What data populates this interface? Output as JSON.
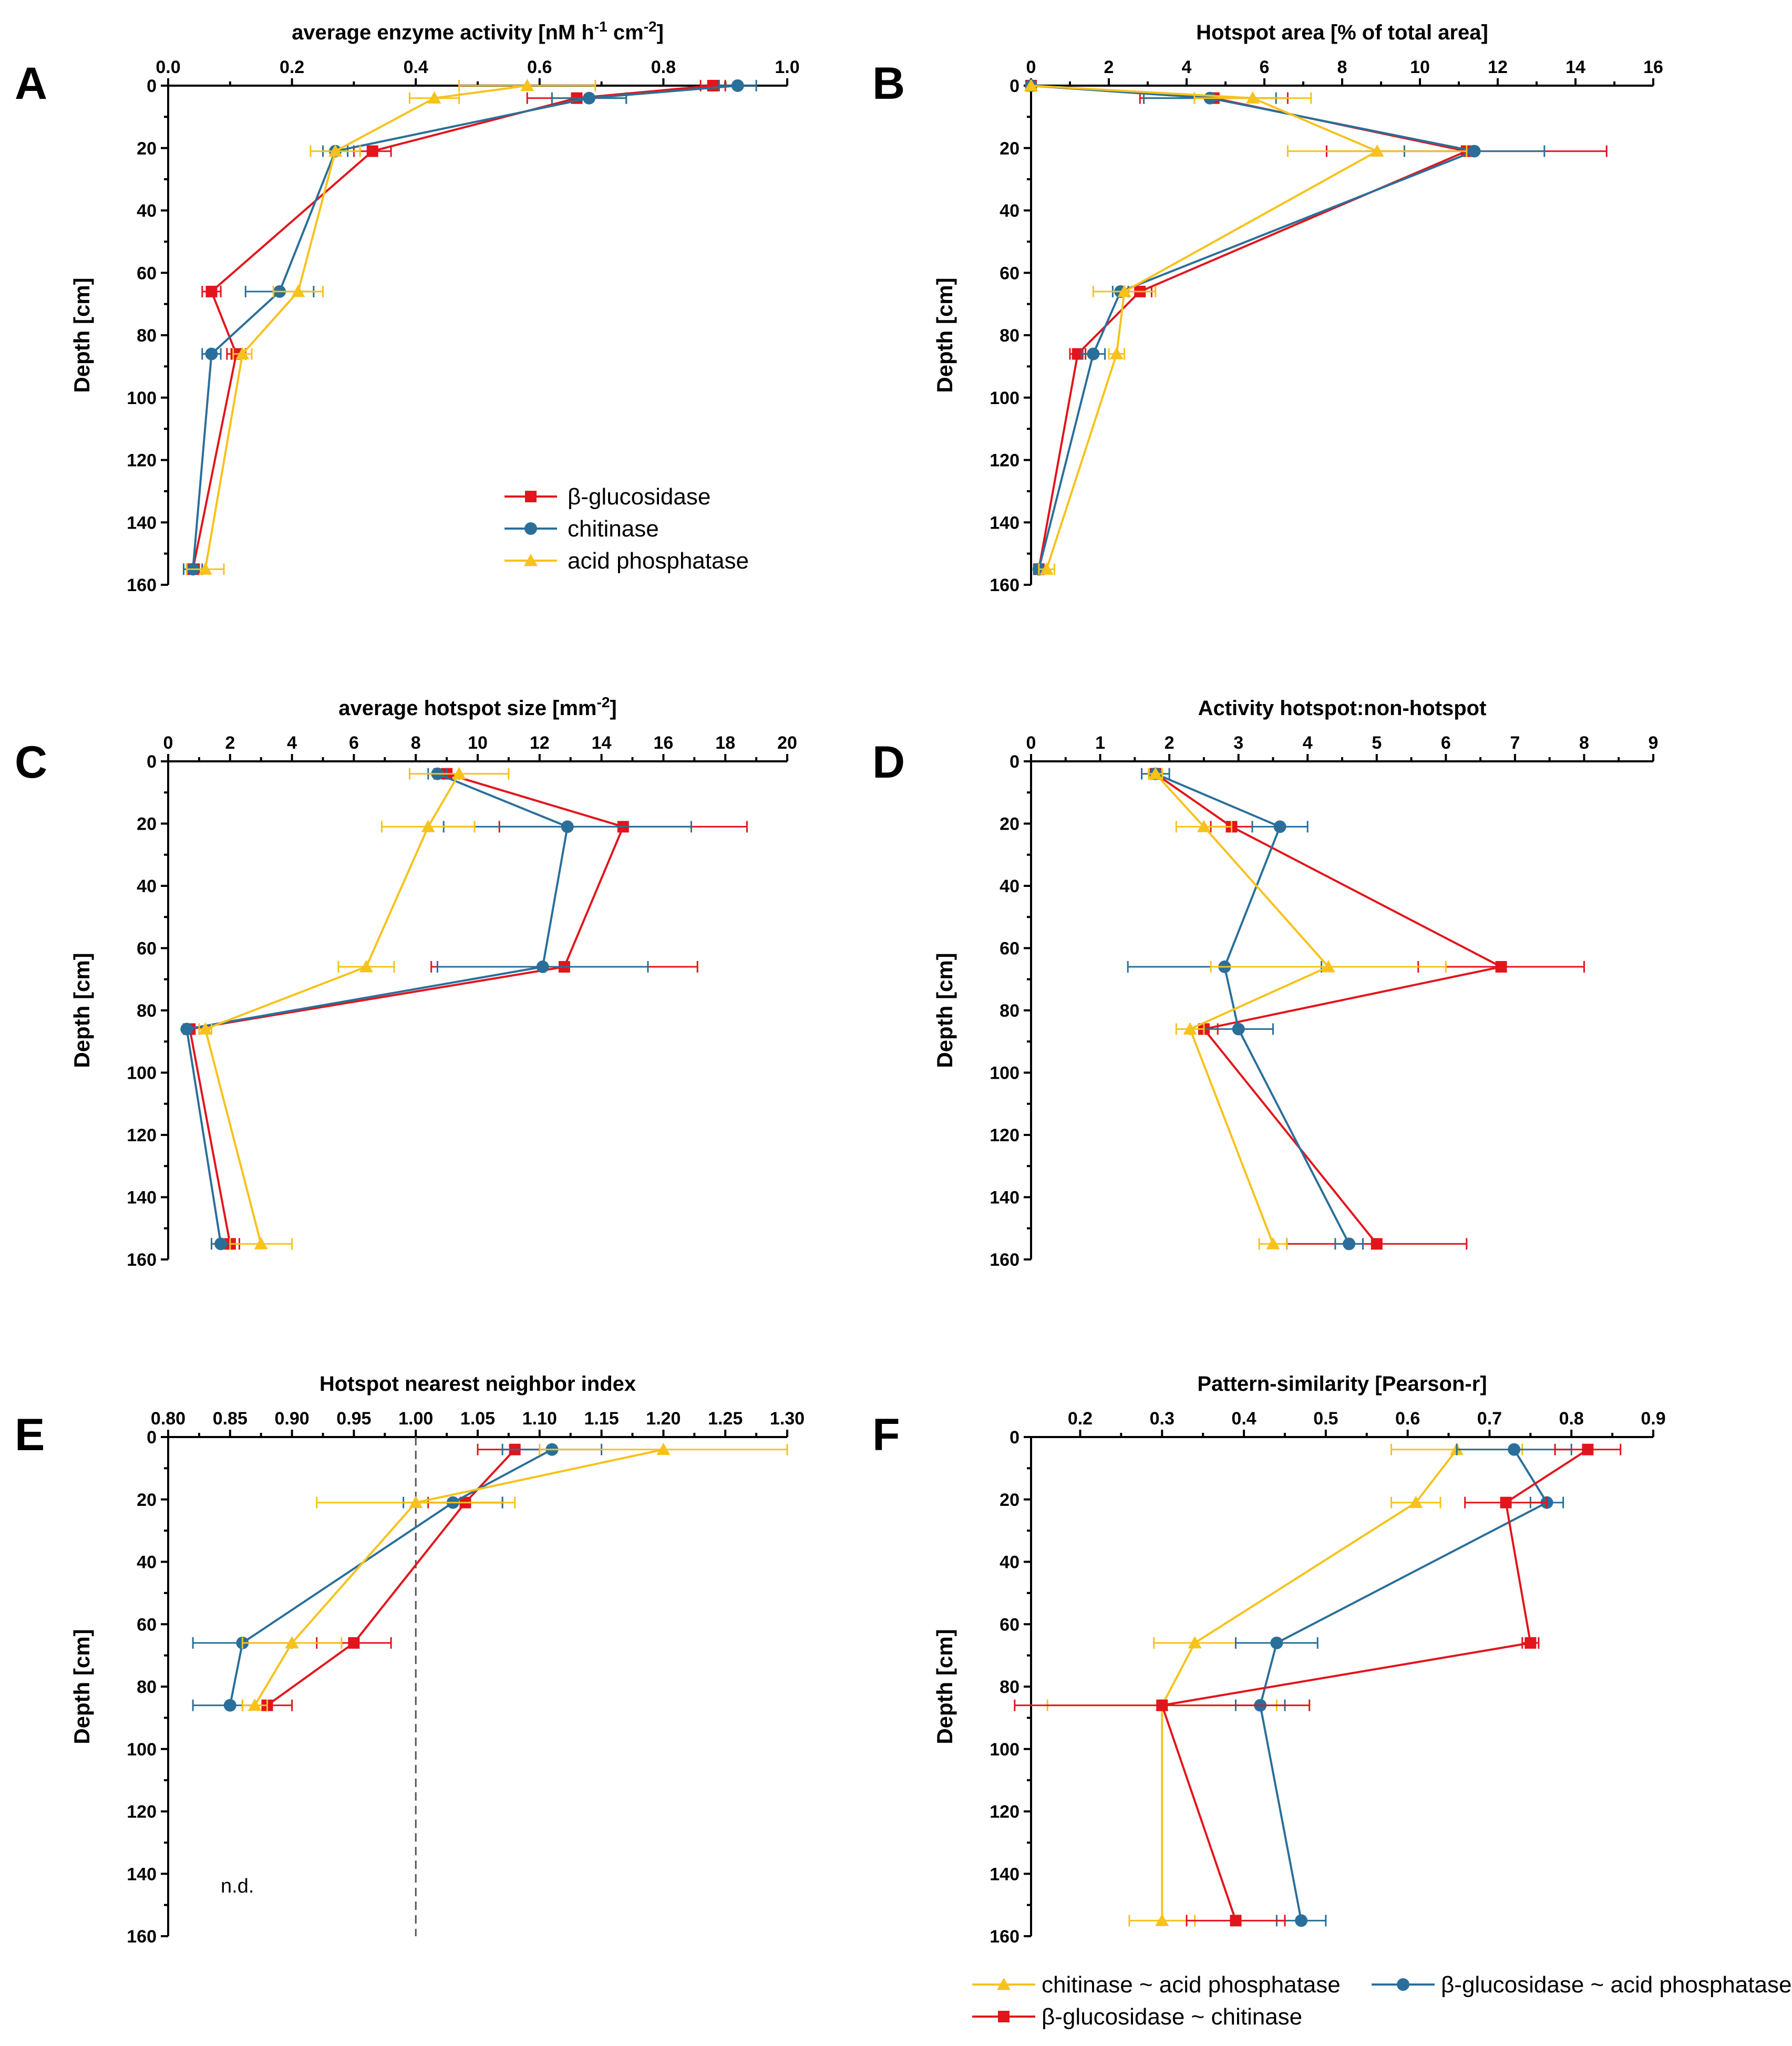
{
  "figure": {
    "ylabel": "Depth [cm]",
    "depth_ticks": [
      0,
      20,
      40,
      60,
      80,
      100,
      120,
      140,
      160
    ],
    "colors": {
      "red": "#e3141c",
      "blue": "#2a6f9a",
      "yellow": "#f7c21a"
    }
  },
  "chart_data": [
    {
      "id": "A",
      "letter": "A",
      "type": "line",
      "title": "average enzyme activity [nM h^-1 cm^-2]",
      "title_parts": [
        "average enzyme activity [nM h",
        "-1",
        " cm",
        "-2",
        "]"
      ],
      "xlim": [
        0,
        1.0
      ],
      "xticks": [
        0.0,
        0.2,
        0.4,
        0.6,
        0.8,
        1.0
      ],
      "xtick_labels": [
        "0.0",
        "0.2",
        "0.4",
        "0.6",
        "0.8",
        "1.0"
      ],
      "ylim": [
        0,
        160
      ],
      "legend": [
        "β-glucosidase",
        "chitinase",
        "acid phosphatase"
      ],
      "series": [
        {
          "name": "β-glucosidase",
          "color": "#e3141c",
          "marker": "square",
          "points": [
            [
              0.88,
              0
            ],
            [
              0.66,
              4
            ],
            [
              0.33,
              21
            ],
            [
              0.07,
              66
            ],
            [
              0.11,
              86
            ],
            [
              0.04,
              155
            ]
          ],
          "errors": [
            0.02,
            0.08,
            0.03,
            0.015,
            0.015,
            0.01
          ]
        },
        {
          "name": "chitinase",
          "color": "#2a6f9a",
          "marker": "circle",
          "points": [
            [
              0.92,
              0
            ],
            [
              0.68,
              4
            ],
            [
              0.27,
              21
            ],
            [
              0.18,
              66
            ],
            [
              0.07,
              86
            ],
            [
              0.04,
              155
            ]
          ],
          "errors": [
            0.03,
            0.06,
            0.02,
            0.055,
            0.015,
            0.015
          ]
        },
        {
          "name": "acid phosphatase",
          "color": "#f7c21a",
          "marker": "triangle",
          "points": [
            [
              0.58,
              0
            ],
            [
              0.43,
              4
            ],
            [
              0.27,
              21
            ],
            [
              0.21,
              66
            ],
            [
              0.12,
              86
            ],
            [
              0.06,
              155
            ]
          ],
          "errors": [
            0.11,
            0.04,
            0.04,
            0.04,
            0.015,
            0.03
          ]
        }
      ]
    },
    {
      "id": "B",
      "letter": "B",
      "type": "line",
      "title": "Hotspot area [% of total area]",
      "title_parts": [
        "Hotspot area [% of total area]"
      ],
      "xlim": [
        0,
        16
      ],
      "xticks": [
        0,
        2,
        4,
        6,
        8,
        10,
        12,
        14,
        16
      ],
      "xtick_labels": [
        "0",
        "2",
        "4",
        "6",
        "8",
        "10",
        "12",
        "14",
        "16"
      ],
      "ylim": [
        0,
        160
      ],
      "series": [
        {
          "name": "β-glucosidase",
          "color": "#e3141c",
          "marker": "square",
          "points": [
            [
              0,
              0
            ],
            [
              4.7,
              4
            ],
            [
              11.2,
              21
            ],
            [
              2.8,
              66
            ],
            [
              1.2,
              86
            ],
            [
              0.2,
              155
            ]
          ],
          "errors": [
            0,
            1.9,
            3.6,
            0.3,
            0.2,
            0.1
          ]
        },
        {
          "name": "chitinase",
          "color": "#2a6f9a",
          "marker": "circle",
          "points": [
            [
              0,
              0
            ],
            [
              4.6,
              4
            ],
            [
              11.4,
              21
            ],
            [
              2.3,
              66
            ],
            [
              1.6,
              86
            ],
            [
              0.2,
              155
            ]
          ],
          "errors": [
            0,
            1.7,
            1.8,
            0.2,
            0.3,
            0.1
          ]
        },
        {
          "name": "acid phosphatase",
          "color": "#f7c21a",
          "marker": "triangle",
          "points": [
            [
              0,
              0
            ],
            [
              5.7,
              4
            ],
            [
              8.9,
              21
            ],
            [
              2.4,
              66
            ],
            [
              2.2,
              86
            ],
            [
              0.4,
              155
            ]
          ],
          "errors": [
            0,
            1.5,
            2.3,
            0.8,
            0.2,
            0.2
          ]
        }
      ]
    },
    {
      "id": "C",
      "letter": "C",
      "type": "line",
      "title": "average hotspot size [mm^-2]",
      "title_parts": [
        "average hotspot size [mm",
        "-2",
        "]"
      ],
      "xlim": [
        0,
        20
      ],
      "xticks": [
        0,
        2,
        4,
        6,
        8,
        10,
        12,
        14,
        16,
        18,
        20
      ],
      "xtick_labels": [
        "0",
        "2",
        "4",
        "6",
        "8",
        "10",
        "12",
        "14",
        "16",
        "18",
        "20"
      ],
      "ylim": [
        0,
        160
      ],
      "series": [
        {
          "name": "β-glucosidase",
          "color": "#e3141c",
          "marker": "square",
          "points": [
            [
              9.0,
              4
            ],
            [
              14.7,
              21
            ],
            [
              12.8,
              66
            ],
            [
              0.7,
              86
            ],
            [
              2.0,
              155
            ]
          ],
          "errors": [
            0.4,
            4.0,
            4.3,
            0.1,
            0.3
          ]
        },
        {
          "name": "chitinase",
          "color": "#2a6f9a",
          "marker": "circle",
          "points": [
            [
              8.7,
              4
            ],
            [
              12.9,
              21
            ],
            [
              12.1,
              66
            ],
            [
              0.6,
              86
            ],
            [
              1.7,
              155
            ]
          ],
          "errors": [
            0.3,
            4.0,
            3.4,
            0.1,
            0.3
          ]
        },
        {
          "name": "acid phosphatase",
          "color": "#f7c21a",
          "marker": "triangle",
          "points": [
            [
              9.4,
              4
            ],
            [
              8.4,
              21
            ],
            [
              6.4,
              66
            ],
            [
              1.2,
              86
            ],
            [
              3.0,
              155
            ]
          ],
          "errors": [
            1.6,
            1.5,
            0.9,
            0.2,
            1.0
          ]
        }
      ]
    },
    {
      "id": "D",
      "letter": "D",
      "type": "line",
      "title": "Activity hotspot:non-hotspot",
      "title_parts": [
        "Activity hotspot:non-hotspot"
      ],
      "xlim": [
        0,
        9
      ],
      "xticks": [
        0,
        1,
        2,
        3,
        4,
        5,
        6,
        7,
        8,
        9
      ],
      "xtick_labels": [
        "0",
        "1",
        "2",
        "3",
        "4",
        "5",
        "6",
        "7",
        "8",
        "9"
      ],
      "ylim": [
        0,
        160
      ],
      "series": [
        {
          "name": "β-glucosidase",
          "color": "#e3141c",
          "marker": "square",
          "points": [
            [
              1.8,
              4
            ],
            [
              2.9,
              21
            ],
            [
              6.8,
              66
            ],
            [
              2.5,
              86
            ],
            [
              5.0,
              155
            ]
          ],
          "errors": [
            0.05,
            0.3,
            1.2,
            0.2,
            1.3
          ]
        },
        {
          "name": "chitinase",
          "color": "#2a6f9a",
          "marker": "circle",
          "points": [
            [
              1.8,
              4
            ],
            [
              3.6,
              21
            ],
            [
              2.8,
              66
            ],
            [
              3.0,
              86
            ],
            [
              4.6,
              155
            ]
          ],
          "errors": [
            0.2,
            0.4,
            1.4,
            0.5,
            0.2
          ]
        },
        {
          "name": "acid phosphatase",
          "color": "#f7c21a",
          "marker": "triangle",
          "points": [
            [
              1.8,
              4
            ],
            [
              2.5,
              21
            ],
            [
              4.3,
              66
            ],
            [
              2.3,
              86
            ],
            [
              3.5,
              155
            ]
          ],
          "errors": [
            0.1,
            0.4,
            1.7,
            0.2,
            0.2
          ]
        }
      ]
    },
    {
      "id": "E",
      "letter": "E",
      "type": "line",
      "title": "Hotspot nearest neighbor index",
      "title_parts": [
        "Hotspot nearest neighbor index"
      ],
      "xlim": [
        0.8,
        1.3
      ],
      "xticks": [
        0.8,
        0.85,
        0.9,
        0.95,
        1.0,
        1.05,
        1.1,
        1.15,
        1.2,
        1.25,
        1.3
      ],
      "xtick_labels": [
        "0.80",
        "0.85",
        "0.90",
        "0.95",
        "1.00",
        "1.05",
        "1.10",
        "1.15",
        "1.20",
        "1.25",
        "1.30"
      ],
      "ylim": [
        0,
        160
      ],
      "reference_line": 1.0,
      "annotation": "n.d.",
      "series": [
        {
          "name": "β-glucosidase",
          "color": "#e3141c",
          "marker": "square",
          "points": [
            [
              1.08,
              4
            ],
            [
              1.04,
              21
            ],
            [
              0.95,
              66
            ],
            [
              0.88,
              86
            ]
          ],
          "errors": [
            0.03,
            0.03,
            0.03,
            0.02
          ]
        },
        {
          "name": "chitinase",
          "color": "#2a6f9a",
          "marker": "circle",
          "points": [
            [
              1.11,
              4
            ],
            [
              1.03,
              21
            ],
            [
              0.86,
              66
            ],
            [
              0.85,
              86
            ]
          ],
          "errors": [
            0.04,
            0.04,
            0.04,
            0.03
          ]
        },
        {
          "name": "acid phosphatase",
          "color": "#f7c21a",
          "marker": "triangle",
          "points": [
            [
              1.2,
              4
            ],
            [
              1.0,
              21
            ],
            [
              0.9,
              66
            ],
            [
              0.87,
              86
            ]
          ],
          "errors": [
            0.1,
            0.08,
            0.04,
            0.01
          ]
        }
      ]
    },
    {
      "id": "F",
      "letter": "F",
      "type": "line",
      "title": "Pattern-similarity [Pearson-r]",
      "title_parts": [
        "Pattern-similarity [Pearson-r]"
      ],
      "xlim": [
        0.14,
        0.9
      ],
      "xticks": [
        0.2,
        0.3,
        0.4,
        0.5,
        0.6,
        0.7,
        0.8,
        0.9
      ],
      "xtick_labels": [
        "0.2",
        "0.3",
        "0.4",
        "0.5",
        "0.6",
        "0.7",
        "0.8",
        "0.9"
      ],
      "ylim": [
        0,
        160
      ],
      "legend": [
        "chitinase ~ acid phosphatase",
        "β-glucosidase ~ acid phosphatase",
        "β-glucosidase ~ chitinase"
      ],
      "series": [
        {
          "name": "chitinase ~ acid phosphatase",
          "color": "#f7c21a",
          "marker": "triangle",
          "points": [
            [
              0.66,
              4
            ],
            [
              0.61,
              21
            ],
            [
              0.34,
              66
            ],
            [
              0.3,
              86
            ],
            [
              0.3,
              155
            ]
          ],
          "errors": [
            0.08,
            0.03,
            0.05,
            0.14,
            0.04
          ]
        },
        {
          "name": "β-glucosidase ~ acid phosphatase",
          "color": "#2a6f9a",
          "marker": "circle",
          "points": [
            [
              0.73,
              4
            ],
            [
              0.77,
              21
            ],
            [
              0.44,
              66
            ],
            [
              0.42,
              86
            ],
            [
              0.47,
              155
            ]
          ],
          "errors": [
            0.07,
            0.02,
            0.05,
            0.03,
            0.03
          ]
        },
        {
          "name": "β-glucosidase ~ chitinase",
          "color": "#e3141c",
          "marker": "square",
          "points": [
            [
              0.82,
              4
            ],
            [
              0.72,
              21
            ],
            [
              0.75,
              66
            ],
            [
              0.3,
              86
            ],
            [
              0.39,
              155
            ]
          ],
          "errors": [
            0.04,
            0.05,
            0.01,
            0.18,
            0.06
          ]
        }
      ]
    }
  ]
}
